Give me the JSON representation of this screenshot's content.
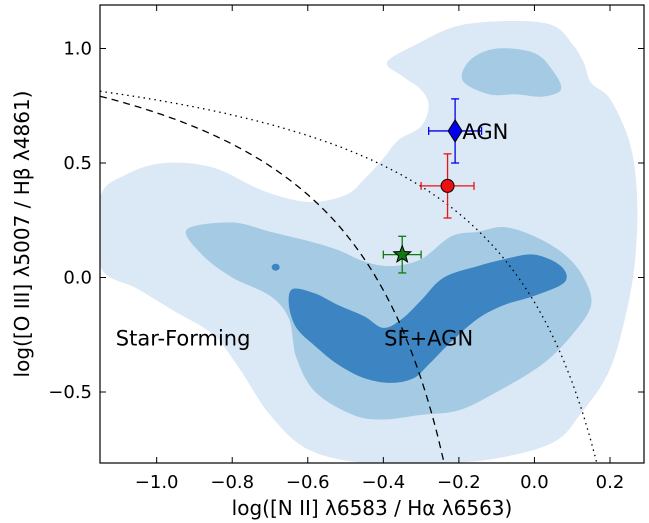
{
  "chart_data": {
    "type": "scatter",
    "title": "",
    "xlabel": "log([N II] λ6583 / Hα λ6563)",
    "ylabel": "log([O III] λ5007 / Hβ λ4861)",
    "xlim": [
      -1.15,
      0.29
    ],
    "ylim": [
      -0.81,
      1.19
    ],
    "xticks": [
      -1.0,
      -0.8,
      -0.6,
      -0.4,
      -0.2,
      0.0,
      0.2
    ],
    "xtick_labels": [
      "−1.0",
      "−0.8",
      "−0.6",
      "−0.4",
      "−0.2",
      "0.0",
      "0.2"
    ],
    "yticks": [
      -0.5,
      0.0,
      0.5,
      1.0
    ],
    "ytick_labels": [
      "−0.5",
      "0.0",
      "0.5",
      "1.0"
    ],
    "grid": false,
    "region_labels": [
      {
        "text": "AGN",
        "x": -0.13,
        "y": 0.63
      },
      {
        "text": "Star-Forming",
        "x": -0.93,
        "y": -0.27
      },
      {
        "text": "SF+AGN",
        "x": -0.28,
        "y": -0.27
      }
    ],
    "density_contours": {
      "levels": [
        "outer",
        "middle",
        "inner"
      ],
      "colors": [
        "#dbe8f5",
        "#a4cbe3",
        "#3c85c2"
      ],
      "outer": [
        [
          -1.15,
          0.35
        ],
        [
          -1.08,
          0.45
        ],
        [
          -0.98,
          0.5
        ],
        [
          -0.85,
          0.48
        ],
        [
          -0.72,
          0.38
        ],
        [
          -0.6,
          0.33
        ],
        [
          -0.5,
          0.36
        ],
        [
          -0.45,
          0.43
        ],
        [
          -0.4,
          0.52
        ],
        [
          -0.36,
          0.6
        ],
        [
          -0.3,
          0.66
        ],
        [
          -0.28,
          0.75
        ],
        [
          -0.3,
          0.82
        ],
        [
          -0.35,
          0.88
        ],
        [
          -0.39,
          0.94
        ],
        [
          -0.31,
          1.02
        ],
        [
          -0.2,
          1.1
        ],
        [
          -0.05,
          1.12
        ],
        [
          0.05,
          1.1
        ],
        [
          0.1,
          1.02
        ],
        [
          0.13,
          0.94
        ],
        [
          0.15,
          0.85
        ],
        [
          0.2,
          0.78
        ],
        [
          0.25,
          0.6
        ],
        [
          0.27,
          0.4
        ],
        [
          0.27,
          0.15
        ],
        [
          0.25,
          -0.1
        ],
        [
          0.2,
          -0.4
        ],
        [
          0.12,
          -0.6
        ],
        [
          0.05,
          -0.72
        ],
        [
          -0.1,
          -0.79
        ],
        [
          -0.25,
          -0.81
        ],
        [
          -0.45,
          -0.81
        ],
        [
          -0.6,
          -0.75
        ],
        [
          -0.7,
          -0.6
        ],
        [
          -0.78,
          -0.4
        ],
        [
          -0.85,
          -0.25
        ],
        [
          -0.95,
          -0.15
        ],
        [
          -1.05,
          -0.05
        ],
        [
          -1.15,
          0.05
        ]
      ],
      "middle": [
        [
          -0.92,
          0.21
        ],
        [
          -0.8,
          0.24
        ],
        [
          -0.7,
          0.2
        ],
        [
          -0.6,
          0.16
        ],
        [
          -0.52,
          0.12
        ],
        [
          -0.45,
          0.07
        ],
        [
          -0.38,
          0.05
        ],
        [
          -0.3,
          0.08
        ],
        [
          -0.22,
          0.18
        ],
        [
          -0.15,
          0.2
        ],
        [
          -0.08,
          0.22
        ],
        [
          0.0,
          0.18
        ],
        [
          0.08,
          0.1
        ],
        [
          0.13,
          0.0
        ],
        [
          0.15,
          -0.12
        ],
        [
          0.1,
          -0.25
        ],
        [
          0.02,
          -0.38
        ],
        [
          -0.1,
          -0.5
        ],
        [
          -0.2,
          -0.58
        ],
        [
          -0.3,
          -0.6
        ],
        [
          -0.4,
          -0.62
        ],
        [
          -0.48,
          -0.6
        ],
        [
          -0.58,
          -0.5
        ],
        [
          -0.63,
          -0.35
        ],
        [
          -0.65,
          -0.18
        ],
        [
          -0.7,
          -0.08
        ],
        [
          -0.8,
          0.0
        ],
        [
          -0.88,
          0.1
        ]
      ],
      "inner": [
        [
          -0.64,
          -0.05
        ],
        [
          -0.58,
          -0.07
        ],
        [
          -0.52,
          -0.12
        ],
        [
          -0.45,
          -0.17
        ],
        [
          -0.4,
          -0.22
        ],
        [
          -0.35,
          -0.18
        ],
        [
          -0.3,
          -0.1
        ],
        [
          -0.24,
          0.0
        ],
        [
          -0.15,
          0.05
        ],
        [
          -0.08,
          0.08
        ],
        [
          0.0,
          0.1
        ],
        [
          0.07,
          0.05
        ],
        [
          0.08,
          -0.02
        ],
        [
          0.0,
          -0.08
        ],
        [
          -0.08,
          -0.12
        ],
        [
          -0.15,
          -0.18
        ],
        [
          -0.22,
          -0.28
        ],
        [
          -0.28,
          -0.38
        ],
        [
          -0.32,
          -0.44
        ],
        [
          -0.38,
          -0.46
        ],
        [
          -0.45,
          -0.44
        ],
        [
          -0.52,
          -0.38
        ],
        [
          -0.58,
          -0.3
        ],
        [
          -0.63,
          -0.22
        ],
        [
          -0.65,
          -0.12
        ]
      ],
      "middle_extra": [
        [
          -0.17,
          0.95
        ],
        [
          -0.1,
          1.0
        ],
        [
          0.0,
          0.98
        ],
        [
          0.05,
          0.9
        ],
        [
          0.07,
          0.82
        ],
        [
          0.02,
          0.79
        ],
        [
          -0.05,
          0.8
        ],
        [
          -0.12,
          0.8
        ],
        [
          -0.19,
          0.86
        ]
      ],
      "islet": [
        -0.685,
        0.045
      ]
    },
    "curves": [
      {
        "style": "dashed",
        "form": "0.61/(x-0.05)+1.3",
        "xmax": -0.2
      },
      {
        "style": "dotted",
        "form": "0.61/(x-0.47)+1.19",
        "xmax": 0.29
      }
    ],
    "series": [
      {
        "marker": "diamond",
        "color": "#0000ee",
        "x": -0.21,
        "y": 0.64,
        "xerr": 0.07,
        "yerr": 0.14
      },
      {
        "marker": "circle",
        "color": "#ee1111",
        "x": -0.23,
        "y": 0.4,
        "xerr": 0.07,
        "yerr": 0.14
      },
      {
        "marker": "star",
        "color": "#0f7a0f",
        "x": -0.35,
        "y": 0.1,
        "xerr": 0.05,
        "yerr": 0.08
      }
    ]
  }
}
